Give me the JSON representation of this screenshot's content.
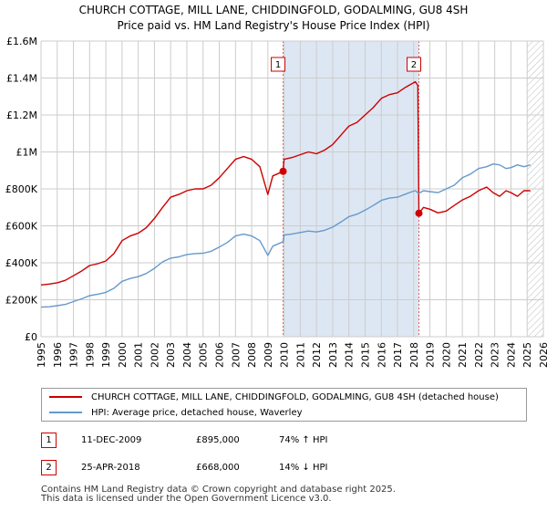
{
  "colors": {
    "property": "#cc0000",
    "hpi": "#6699cc",
    "grid": "#cccccc",
    "shade": "#dde7f3",
    "badge_border": "#cc0000"
  },
  "title_line1": "CHURCH COTTAGE, MILL LANE, CHIDDINGFOLD, GODALMING, GU8 4SH",
  "title_line2": "Price paid vs. HM Land Registry's House Price Index (HPI)",
  "legend": {
    "property_label": "CHURCH COTTAGE, MILL LANE, CHIDDINGFOLD, GODALMING, GU8 4SH (detached house)",
    "hpi_label": "HPI: Average price, detached house, Waverley"
  },
  "transactions": [
    {
      "num": "1",
      "date": "11-DEC-2009",
      "price": "£895,000",
      "pct": "74% ↑ HPI"
    },
    {
      "num": "2",
      "date": "25-APR-2018",
      "price": "£668,000",
      "pct": "14% ↓ HPI"
    }
  ],
  "footer": {
    "line1": "Contains HM Land Registry data © Crown copyright and database right 2025.",
    "line2": "This data is licensed under the Open Government Licence v3.0."
  },
  "chart_data": {
    "type": "line",
    "title": "CHURCH COTTAGE, MILL LANE, CHIDDINGFOLD, GODALMING, GU8 4SH",
    "subtitle": "Price paid vs. HM Land Registry's House Price Index (HPI)",
    "xlabel": "",
    "ylabel": "",
    "xlim": [
      1995,
      2026
    ],
    "ylim": [
      0,
      1600000
    ],
    "grid": true,
    "legend_position": "bottom",
    "x_ticks": [
      1995,
      1996,
      1997,
      1998,
      1999,
      2000,
      2001,
      2002,
      2003,
      2004,
      2005,
      2006,
      2007,
      2008,
      2009,
      2010,
      2011,
      2012,
      2013,
      2014,
      2015,
      2016,
      2017,
      2018,
      2019,
      2020,
      2021,
      2022,
      2023,
      2024,
      2025,
      2026
    ],
    "x_tick_labels": [
      "1995",
      "1996",
      "1997",
      "1998",
      "1999",
      "2000",
      "2001",
      "2002",
      "2003",
      "2004",
      "2005",
      "2006",
      "2007",
      "2008",
      "2009",
      "2010",
      "2011",
      "2012",
      "2013",
      "2014",
      "2015",
      "2016",
      "2017",
      "2018",
      "2019",
      "2020",
      "2021",
      "2022",
      "2023",
      "2024",
      "2025",
      "2026"
    ],
    "y_ticks": [
      0,
      200000,
      400000,
      600000,
      800000,
      1000000,
      1200000,
      1400000,
      1600000
    ],
    "y_tick_labels": [
      "£0",
      "£200K",
      "£400K",
      "£600K",
      "£800K",
      "£1M",
      "£1.2M",
      "£1.4M",
      "£1.6M"
    ],
    "shaded_range": [
      2009.94,
      2018.32
    ],
    "hatched_from": 2025.0,
    "series": [
      {
        "name": "CHURCH COTTAGE, MILL LANE, CHIDDINGFOLD, GODALMING, GU8 4SH (detached house)",
        "color": "#cc0000",
        "x": [
          1995.0,
          1995.5,
          1996.0,
          1996.5,
          1997.0,
          1997.5,
          1998.0,
          1998.5,
          1999.0,
          1999.5,
          2000.0,
          2000.5,
          2001.0,
          2001.5,
          2002.0,
          2002.5,
          2003.0,
          2003.5,
          2004.0,
          2004.5,
          2005.0,
          2005.5,
          2006.0,
          2006.5,
          2007.0,
          2007.5,
          2008.0,
          2008.5,
          2009.0,
          2009.3,
          2009.94,
          2010.0,
          2010.5,
          2011.0,
          2011.5,
          2012.0,
          2012.5,
          2013.0,
          2013.5,
          2014.0,
          2014.5,
          2015.0,
          2015.5,
          2016.0,
          2016.5,
          2017.0,
          2017.5,
          2017.9,
          2018.1,
          2018.25,
          2018.32,
          2018.6,
          2019.0,
          2019.5,
          2020.0,
          2020.5,
          2021.0,
          2021.5,
          2022.0,
          2022.5,
          2022.9,
          2023.3,
          2023.7,
          2024.0,
          2024.4,
          2024.8,
          2025.2
        ],
        "y": [
          280000,
          285000,
          292000,
          305000,
          330000,
          355000,
          385000,
          395000,
          410000,
          450000,
          520000,
          545000,
          560000,
          590000,
          640000,
          700000,
          755000,
          770000,
          790000,
          800000,
          800000,
          820000,
          860000,
          910000,
          960000,
          975000,
          960000,
          920000,
          770000,
          870000,
          895000,
          960000,
          970000,
          985000,
          1000000,
          990000,
          1010000,
          1040000,
          1090000,
          1140000,
          1160000,
          1200000,
          1240000,
          1290000,
          1310000,
          1320000,
          1350000,
          1370000,
          1380000,
          1360000,
          668000,
          700000,
          690000,
          670000,
          680000,
          710000,
          740000,
          760000,
          790000,
          810000,
          780000,
          760000,
          790000,
          780000,
          760000,
          790000,
          790000
        ]
      },
      {
        "name": "HPI: Average price, detached house, Waverley",
        "color": "#6699cc",
        "x": [
          1995.0,
          1995.5,
          1996.0,
          1996.5,
          1997.0,
          1997.5,
          1998.0,
          1998.5,
          1999.0,
          1999.5,
          2000.0,
          2000.5,
          2001.0,
          2001.5,
          2002.0,
          2002.5,
          2003.0,
          2003.5,
          2004.0,
          2004.5,
          2005.0,
          2005.5,
          2006.0,
          2006.5,
          2007.0,
          2007.5,
          2008.0,
          2008.5,
          2009.0,
          2009.3,
          2009.94,
          2010.0,
          2010.5,
          2011.0,
          2011.5,
          2012.0,
          2012.5,
          2013.0,
          2013.5,
          2014.0,
          2014.5,
          2015.0,
          2015.5,
          2016.0,
          2016.5,
          2017.0,
          2017.5,
          2017.9,
          2018.1,
          2018.25,
          2018.32,
          2018.6,
          2019.0,
          2019.5,
          2020.0,
          2020.5,
          2021.0,
          2021.5,
          2022.0,
          2022.5,
          2022.9,
          2023.3,
          2023.7,
          2024.0,
          2024.4,
          2024.8,
          2025.2
        ],
        "y": [
          160000,
          162000,
          168000,
          175000,
          190000,
          205000,
          222000,
          230000,
          240000,
          262000,
          300000,
          315000,
          325000,
          342000,
          370000,
          405000,
          425000,
          432000,
          445000,
          450000,
          452000,
          462000,
          485000,
          510000,
          545000,
          555000,
          545000,
          520000,
          440000,
          490000,
          514000,
          550000,
          556000,
          564000,
          572000,
          567000,
          576000,
          593000,
          620000,
          650000,
          663000,
          685000,
          710000,
          738000,
          750000,
          755000,
          772000,
          785000,
          790000,
          780000,
          777000,
          790000,
          785000,
          780000,
          800000,
          820000,
          860000,
          880000,
          910000,
          920000,
          935000,
          930000,
          910000,
          915000,
          930000,
          920000,
          930000
        ]
      }
    ],
    "markers": [
      {
        "label": "1",
        "x": 2009.94,
        "y": 895000
      },
      {
        "label": "2",
        "x": 2018.32,
        "y": 668000
      }
    ]
  }
}
